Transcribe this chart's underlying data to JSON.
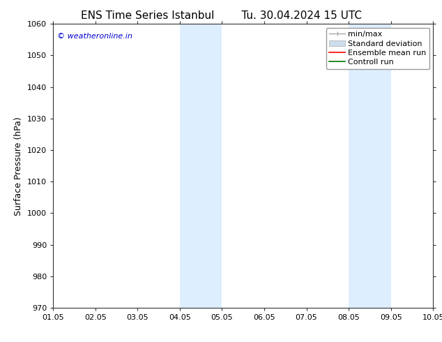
{
  "title_left": "ENS Time Series Istanbul",
  "title_right": "Tu. 30.04.2024 15 UTC",
  "ylabel": "Surface Pressure (hPa)",
  "xlabel": "",
  "ylim": [
    970,
    1060
  ],
  "yticks": [
    970,
    980,
    990,
    1000,
    1010,
    1020,
    1030,
    1040,
    1050,
    1060
  ],
  "xtick_labels": [
    "01.05",
    "02.05",
    "03.05",
    "04.05",
    "05.05",
    "06.05",
    "07.05",
    "08.05",
    "09.05",
    "10.05"
  ],
  "n_ticks": 10,
  "xlim": [
    0,
    9
  ],
  "shaded_bands": [
    {
      "x_start": 3.0,
      "x_end": 4.0,
      "color": "#ddeeff"
    },
    {
      "x_start": 7.0,
      "x_end": 8.0,
      "color": "#ddeeff"
    }
  ],
  "watermark_text": "© weatheronline.in",
  "watermark_color": "#0000cc",
  "background_color": "#ffffff",
  "legend_minmax_color": "#aaaaaa",
  "legend_std_color": "#ccdded",
  "legend_ens_color": "#ff0000",
  "legend_ctrl_color": "#007700",
  "title_fontsize": 11,
  "tick_fontsize": 8,
  "ylabel_fontsize": 9,
  "legend_fontsize": 8,
  "watermark_fontsize": 8
}
